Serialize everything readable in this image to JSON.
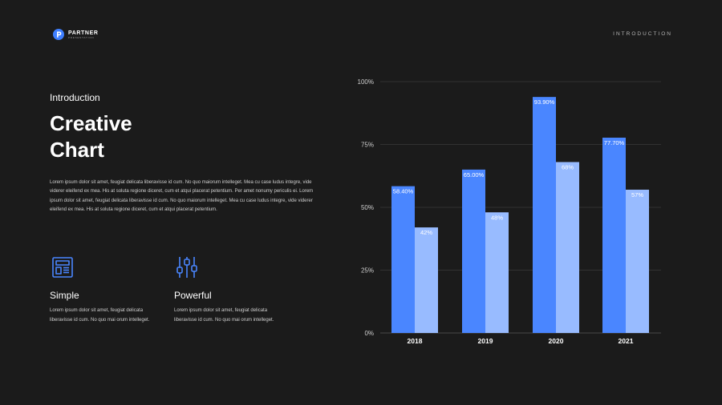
{
  "brand": {
    "name": "PARTNER",
    "tagline": "PRESENTATION",
    "accent": "#3f7fff"
  },
  "header": {
    "section_label": "INTRODUCTION"
  },
  "intro": {
    "subtitle": "Introduction",
    "title_line1": "Creative",
    "title_line2": "Chart",
    "body": "Lorem ipsum dolor sit amet, feugiat delicata liberavisse id cum. No quo maiorum intelleget. Mea cu case ludus integre, vide viderer eleifend ex mea. His at soluta regione diceret, cum et atqui placerat petentium. Per amet nonumy periculis ei. Lorem ipsum dolor sit amet, feugiat delicata liberavisse id cum. No quo maiorum intelleget. Mea cu case ludus integre, vide viderer eleifend ex mea. His at soluta regione diceret, cum et atqui placerat petentium."
  },
  "features": [
    {
      "icon": "newspaper-icon",
      "title": "Simple",
      "text": "Lorem ipsum dolor sit amet, feugiat delicata liberavisse id cum. No quo mai orum intelleget."
    },
    {
      "icon": "sliders-icon",
      "title": "Powerful",
      "text": "Lorem ipsum dolor sit amet, feugiat delicata liberavisse id cum. No quo mai orum intelleget."
    }
  ],
  "chart_data": {
    "type": "bar",
    "categories": [
      "2018",
      "2019",
      "2020",
      "2021"
    ],
    "series": [
      {
        "values": [
          58.4,
          65.0,
          93.9,
          77.7
        ],
        "labels": [
          "58.40%",
          "65.00%",
          "93.90%",
          "77.70%"
        ],
        "color": "#4a86ff"
      },
      {
        "values": [
          42,
          48,
          68,
          57
        ],
        "labels": [
          "42%",
          "48%",
          "68%",
          "57%"
        ],
        "color": "#98bbff"
      }
    ],
    "ylim": [
      0,
      100
    ],
    "yticks": [
      0,
      25,
      50,
      75,
      100
    ],
    "ytick_labels": [
      "0%",
      "25%",
      "50%",
      "75%",
      "100%"
    ],
    "grid": true,
    "gridline_color": "#3a3a3a",
    "title": "",
    "xlabel": "",
    "ylabel": ""
  }
}
